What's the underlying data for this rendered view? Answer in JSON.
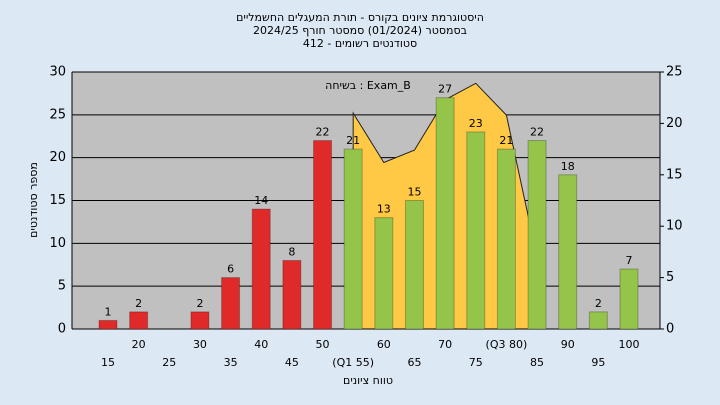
{
  "chart_data": {
    "type": "bar",
    "title": "היסטוגרמת ציונים בקורס - תורת המעגלים החשמליים",
    "subtitle": "בסמסטר (01/2024) סמסטר חורף 2024/25",
    "subtitle2": "412 - סטודנטים רשומים",
    "annotation": "בשיחה : Exam_B",
    "x_label": "טווח ציונים",
    "y_label": "מספר סטודנטים",
    "categories": [
      "15",
      "20",
      "25",
      "30",
      "35",
      "40",
      "45",
      "50",
      "(Q1 55)",
      "60",
      "65",
      "70",
      "75",
      "(Q3 80)",
      "85",
      "90",
      "95",
      "100"
    ],
    "values": [
      1,
      2,
      null,
      2,
      6,
      14,
      8,
      22,
      21,
      13,
      15,
      27,
      23,
      21,
      22,
      18,
      2,
      7
    ],
    "colors": [
      "#e02a2a",
      "#e02a2a",
      "#e02a2a",
      "#e02a2a",
      "#e02a2a",
      "#e02a2a",
      "#e02a2a",
      "#e02a2a",
      "#94c44a",
      "#94c44a",
      "#94c44a",
      "#94c44a",
      "#94c44a",
      "#94c44a",
      "#94c44a",
      "#94c44a",
      "#94c44a",
      "#94c44a"
    ],
    "area": {
      "color": "#ffc845",
      "axis": "y2",
      "values": [
        null,
        null,
        null,
        null,
        null,
        null,
        null,
        null,
        21,
        16.2,
        17.4,
        22.3,
        23.9,
        20.8,
        7,
        null,
        null,
        null
      ]
    },
    "ylim": [
      0,
      30
    ],
    "yticks": [
      0,
      5,
      10,
      15,
      20,
      25,
      30
    ],
    "y2lim": [
      0,
      25
    ],
    "y2ticks": [
      0,
      5,
      10,
      15,
      20,
      25
    ],
    "grid": true
  }
}
